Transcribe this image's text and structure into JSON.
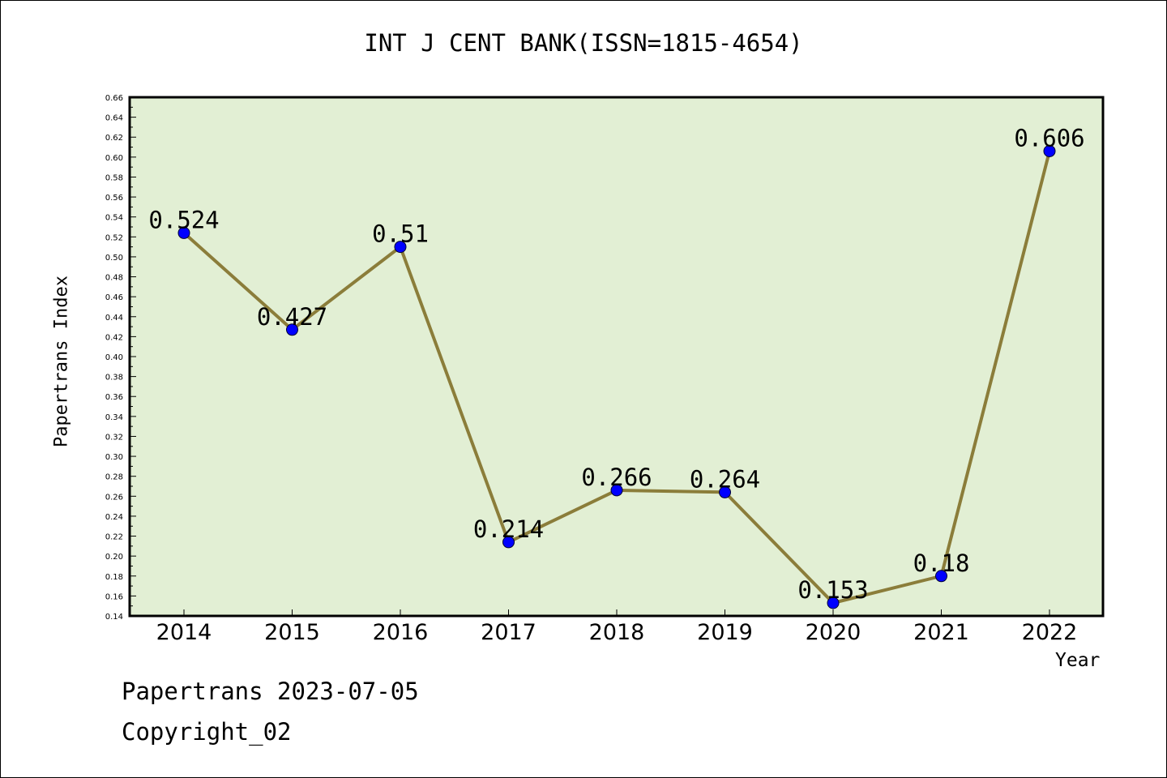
{
  "chart_data": {
    "type": "line",
    "title": "INT J CENT BANK(ISSN=1815-4654)",
    "xlabel": "Year",
    "ylabel": "Papertrans Index",
    "categories": [
      "2014",
      "2015",
      "2016",
      "2017",
      "2018",
      "2019",
      "2020",
      "2021",
      "2022"
    ],
    "series": [
      {
        "values": [
          0.524,
          0.427,
          0.51,
          0.214,
          0.266,
          0.264,
          0.153,
          0.18,
          0.606
        ],
        "data_labels": [
          "0.524",
          "0.427",
          "0.51",
          "0.214",
          "0.266",
          "0.264",
          "0.153",
          "0.18",
          "0.606"
        ],
        "line_color": "#8b7d3a",
        "marker_color": "#0000ff"
      }
    ],
    "ylim": [
      0.14,
      0.66
    ],
    "ytick_step": 0.02,
    "grid": false,
    "plot_background": "#e2efd4"
  },
  "footer": {
    "line1": "Papertrans 2023-07-05",
    "line2": "Copyright_02"
  }
}
